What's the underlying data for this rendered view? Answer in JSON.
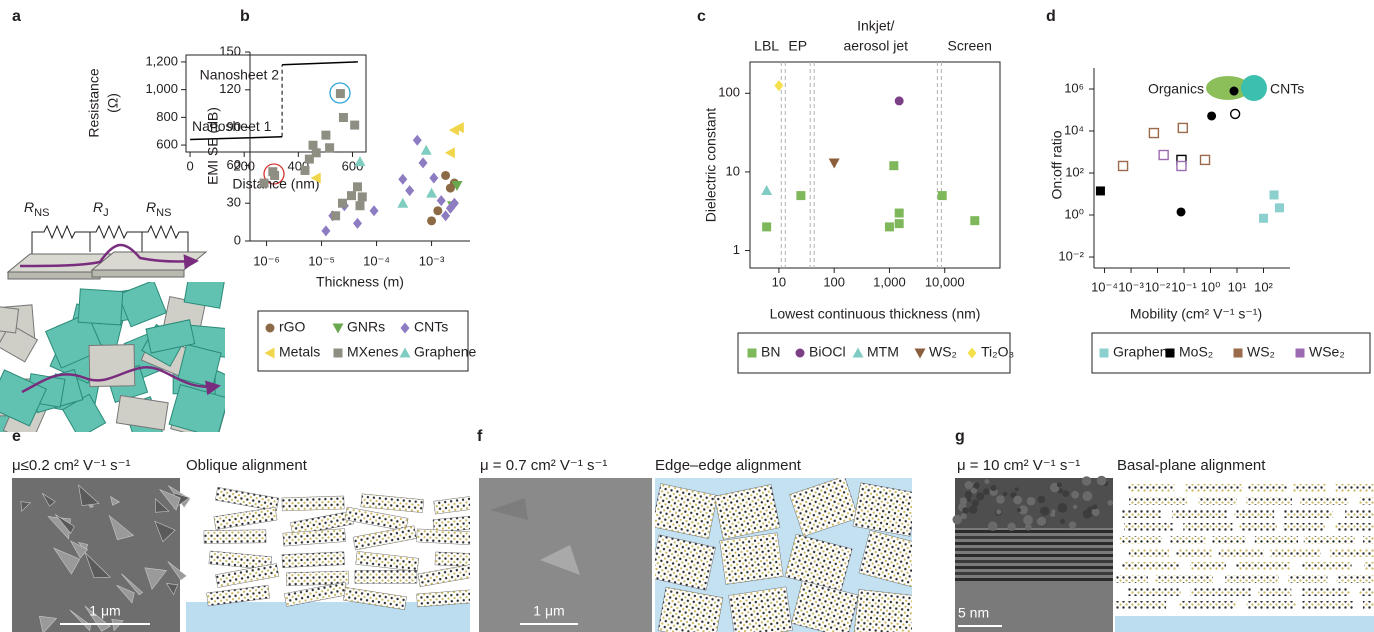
{
  "panel_labels": [
    "a",
    "b",
    "c",
    "d",
    "e",
    "f",
    "g"
  ],
  "chart_data": [
    {
      "type": "line",
      "xlabel": "Distance (nm)",
      "ylabel": [
        "Resistance",
        "(Ω)"
      ],
      "xlim": [
        -15,
        650
      ],
      "ylim": [
        550,
        1250
      ],
      "xticks": [
        0,
        200,
        400,
        600
      ],
      "yticks": [
        600,
        800,
        {
          "value": 1000,
          "label": "1,000"
        },
        {
          "value": 1200,
          "label": "1,200"
        }
      ],
      "series": [
        {
          "name": "Nanosheet 1",
          "color": "#000000",
          "x": [
            0,
            340
          ],
          "values": [
            640,
            660
          ]
        },
        {
          "name": "Nanosheet 2",
          "color": "#000000",
          "x": [
            340,
            620
          ],
          "values": [
            1180,
            1200
          ]
        }
      ]
    },
    {
      "type": "scatter",
      "xlabel": "Thickness (m)",
      "ylabel": "EMI SE (dB)",
      "xscale": "log",
      "xlim": [
        5e-07,
        0.005
      ],
      "ylim": [
        0,
        150
      ],
      "xticks": [
        {
          "value": 1e-06,
          "label": "10⁻⁶"
        },
        {
          "value": 1e-05,
          "label": "10⁻⁵"
        },
        {
          "value": 0.0001,
          "label": "10⁻⁴"
        },
        {
          "value": 0.001,
          "label": "10⁻³"
        }
      ],
      "yticks": [
        0,
        30,
        60,
        90,
        120,
        150
      ],
      "series": [
        {
          "name": "rGO",
          "color": "#8b6a45",
          "marker": "circle",
          "x": [
            0.001,
            0.0013,
            0.0018,
            0.0022,
            0.0026
          ],
          "values": [
            16,
            24,
            52,
            42,
            46
          ]
        },
        {
          "name": "GNRs",
          "color": "#6aa84f",
          "marker": "triangle-down",
          "x": [
            0.0029,
            0.0024
          ],
          "values": [
            44,
            28
          ]
        },
        {
          "name": "CNTs",
          "color": "#8e7cc3",
          "marker": "diamond",
          "x": [
            1.2e-05,
            1.6e-05,
            2.6e-05,
            4.5e-05,
            9e-05,
            0.0003,
            0.0004,
            0.00055,
            0.0007,
            0.0011,
            0.0015,
            0.0018,
            0.0022,
            0.0026
          ],
          "values": [
            8,
            20,
            28,
            14,
            24,
            49,
            40,
            80,
            62,
            50,
            32,
            20,
            26,
            30
          ]
        },
        {
          "name": "Metals",
          "color": "#f1d54a",
          "marker": "triangle-left",
          "x": [
            8e-06,
            0.0022,
            0.0026,
            0.0032
          ],
          "values": [
            50,
            70,
            88,
            90
          ]
        },
        {
          "name": "MXenes",
          "color": "#8f8e83",
          "marker": "square",
          "x": [
            9e-07,
            1.3e-06,
            1.4e-06,
            5e-06,
            6e-06,
            7e-06,
            8e-06,
            1.2e-05,
            1.4e-05,
            1.8e-05,
            2.4e-05,
            2.5e-05,
            3.5e-05,
            2.2e-05,
            4e-05,
            4.5e-05,
            5e-05,
            5.5e-05
          ],
          "values": [
            46,
            55,
            52,
            56,
            65,
            76,
            70,
            84,
            74,
            20,
            30,
            98,
            36,
            117,
            92,
            43,
            28,
            35
          ]
        },
        {
          "name": "Graphene",
          "color": "#7fcdc0",
          "marker": "triangle-up",
          "x": [
            5e-05,
            0.0003,
            0.0008,
            0.001
          ],
          "values": [
            63,
            30,
            72,
            38
          ]
        }
      ]
    },
    {
      "type": "scatter",
      "xlabel": "Lowest continuous thickness (nm)",
      "ylabel": "Dielectric constant",
      "xscale": "log",
      "yscale": "log",
      "xlim": [
        3,
        100000
      ],
      "ylim": [
        0.6,
        250
      ],
      "xticks": [
        10,
        100,
        {
          "value": 1000,
          "label": "1,000"
        },
        {
          "value": 10000,
          "label": "10,000"
        }
      ],
      "yticks": [
        1,
        10,
        100
      ],
      "dividers": [
        12,
        40,
        8000
      ],
      "regions": [
        {
          "lines": [
            "LBL"
          ]
        },
        {
          "lines": [
            "EP"
          ]
        },
        {
          "lines": [
            "Inkjet/",
            "aerosol jet"
          ]
        },
        {
          "lines": [
            "Screen"
          ]
        }
      ],
      "series": [
        {
          "name": "BN",
          "color": "#7fb85a",
          "marker": "square",
          "x": [
            6,
            25,
            1000,
            1200,
            1500,
            1500,
            9000,
            35000
          ],
          "values": [
            2,
            5,
            2,
            12,
            2.2,
            3,
            5,
            2.4
          ]
        },
        {
          "name": "BiOCl",
          "color": "#7b3f85",
          "marker": "circle",
          "x": [
            1500
          ],
          "values": [
            80
          ]
        },
        {
          "name": "MTM",
          "color": "#80cbc4",
          "marker": "triangle-up",
          "x": [
            6
          ],
          "values": [
            5.8
          ]
        },
        {
          "name": "WS₂",
          "color": "#8b5e3c",
          "marker": "triangle-down",
          "x": [
            100
          ],
          "values": [
            13
          ]
        },
        {
          "name": "Ti₂O₃",
          "color": "#f4e04d",
          "marker": "diamond",
          "x": [
            10
          ],
          "values": [
            125
          ]
        }
      ]
    },
    {
      "type": "scatter",
      "xlabel": "Mobility (cm² V⁻¹ s⁻¹)",
      "ylabel": "On:off ratio",
      "xscale": "log",
      "yscale": "log",
      "xlim": [
        4e-05,
        1000
      ],
      "ylim": [
        0.003,
        10000000
      ],
      "xticks": [
        {
          "value": 0.0001,
          "label": "10⁻⁴"
        },
        {
          "value": 0.001,
          "label": "10⁻³"
        },
        {
          "value": 0.01,
          "label": "10⁻²"
        },
        {
          "value": 0.1,
          "label": "10⁻¹"
        },
        {
          "value": 1,
          "label": "10⁰"
        },
        {
          "value": 10,
          "label": "10¹"
        },
        {
          "value": 100,
          "label": "10²"
        }
      ],
      "yticks": [
        {
          "value": 0.01,
          "label": "10⁻²"
        },
        {
          "value": 1,
          "label": "10⁰"
        },
        {
          "value": 100,
          "label": "10²"
        },
        {
          "value": 10000,
          "label": "10⁴"
        },
        {
          "value": 1000000,
          "label": "10⁶"
        }
      ],
      "annotations": [
        "Organics",
        "CNTs"
      ],
      "series": [
        {
          "name": "Graphene",
          "color": "#8ccfcf",
          "marker": "square",
          "x": [
            100,
            250,
            400
          ],
          "values": [
            0.7,
            9,
            2.2
          ]
        },
        {
          "name": "MoS₂",
          "color": "#000000",
          "marker": "square",
          "markers": [
            "square",
            "circle",
            "open-square",
            "circle",
            "circle",
            "open-circle"
          ],
          "x": [
            7e-05,
            0.077,
            0.08,
            1.1,
            7.7,
            8.5
          ],
          "values": [
            14,
            1.4,
            420,
            52000,
            800000,
            65000
          ]
        },
        {
          "name": "WS₂",
          "color": "#9a6a4a",
          "marker": "square",
          "markers": [
            "open-square",
            "open-square",
            "open-square",
            "open-square"
          ],
          "x": [
            0.0005,
            0.0073,
            0.09,
            0.62
          ],
          "values": [
            216,
            8000,
            14000,
            420
          ]
        },
        {
          "name": "WSe₂",
          "color": "#9c6ab0",
          "marker": "square",
          "markers": [
            "open-square",
            "open-square"
          ],
          "x": [
            0.017,
            0.08
          ],
          "values": [
            720,
            216
          ]
        }
      ]
    }
  ],
  "schematic": {
    "resistors": [
      {
        "main": "R",
        "sub": "NS"
      },
      {
        "main": "R",
        "sub": "J"
      },
      {
        "main": "R",
        "sub": "NS"
      }
    ]
  },
  "image_panels": [
    {
      "mobility": "μ≤0.2 cm² V⁻¹ s⁻¹",
      "title": "Oblique alignment",
      "scale_bar": "1 μm"
    },
    {
      "mobility": "μ = 0.7 cm² V⁻¹ s⁻¹",
      "title": "Edge–edge alignment",
      "scale_bar": "1 μm"
    },
    {
      "mobility": "μ = 10 cm² V⁻¹ s⁻¹",
      "title": "Basal-plane alignment",
      "scale_bar": "5 nm"
    }
  ]
}
